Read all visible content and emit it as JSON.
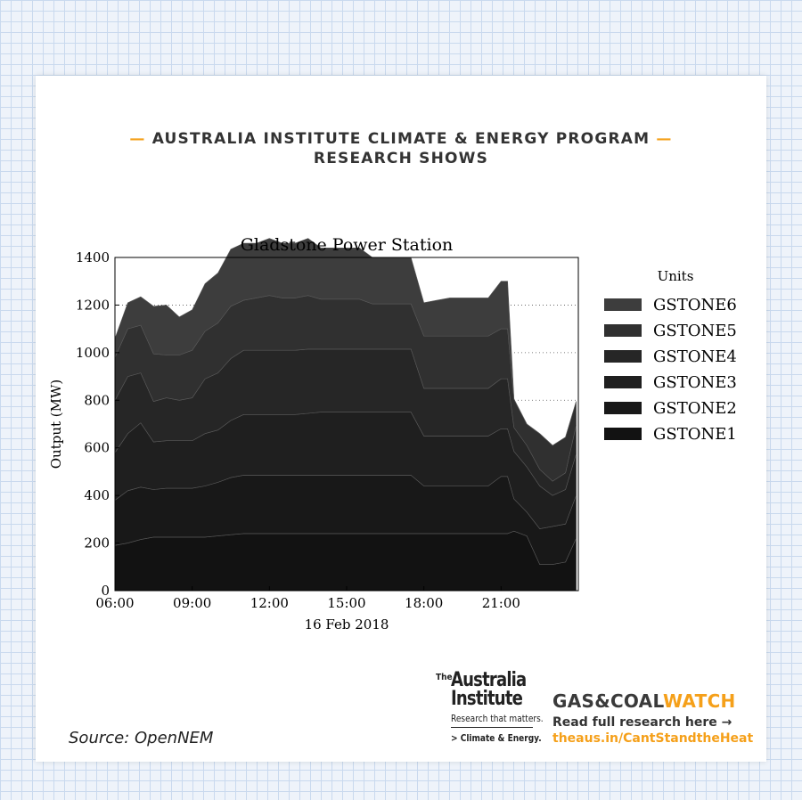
{
  "header": {
    "line1": "AUSTRALIA INSTITUTE CLIMATE & ENERGY PROGRAM",
    "line2": "RESEARCH SHOWS",
    "dash": "—"
  },
  "source": "Source: OpenNEM",
  "brand": {
    "ai_the": "The",
    "ai_name_line1": "Australia",
    "ai_name_line2": "Institute",
    "ai_tagline": "Research that matters.",
    "ai_program": "> Climate & Energy.",
    "gcw_part1": "GAS&COAL",
    "gcw_part2": "WATCH",
    "read_more": "Read full research here →",
    "url": "theaus.in/CantStandtheHeat"
  },
  "colors": {
    "accent": "#f5a01a",
    "units": [
      "#121212",
      "#181818",
      "#1f1f1f",
      "#262626",
      "#303030",
      "#3d3d3d"
    ]
  },
  "chart_data": {
    "type": "area",
    "stacked": true,
    "title": "Gladstone Power Station",
    "xlabel": "16 Feb 2018",
    "ylabel": "Output (MW)",
    "ylim": [
      0,
      1400
    ],
    "yticks": [
      0,
      200,
      400,
      600,
      800,
      1000,
      1200,
      1400
    ],
    "xlim": [
      "06:00",
      "24:00"
    ],
    "xticks": [
      "06:00",
      "09:00",
      "12:00",
      "15:00",
      "18:00",
      "21:00"
    ],
    "grid": "horizontal dotted",
    "legend_title": "Units",
    "legend_position": "right",
    "x": [
      "06:00",
      "06:30",
      "07:00",
      "07:30",
      "08:00",
      "08:30",
      "09:00",
      "09:30",
      "10:00",
      "10:30",
      "11:00",
      "11:30",
      "12:00",
      "12:30",
      "13:00",
      "13:30",
      "14:00",
      "14:30",
      "15:00",
      "15:30",
      "16:00",
      "16:30",
      "17:00",
      "17:30",
      "18:00",
      "18:30",
      "19:00",
      "19:30",
      "20:00",
      "20:30",
      "21:00",
      "21:15",
      "21:30",
      "22:00",
      "22:30",
      "23:00",
      "23:30",
      "23:55"
    ],
    "series": [
      {
        "name": "GSTONE1",
        "values": [
          190,
          200,
          215,
          225,
          225,
          225,
          225,
          225,
          230,
          235,
          240,
          240,
          240,
          240,
          240,
          240,
          240,
          240,
          240,
          240,
          240,
          240,
          240,
          240,
          240,
          240,
          240,
          240,
          240,
          240,
          240,
          240,
          250,
          230,
          110,
          110,
          120,
          220
        ]
      },
      {
        "name": "GSTONE2",
        "values": [
          190,
          220,
          220,
          200,
          205,
          205,
          205,
          215,
          225,
          240,
          245,
          245,
          245,
          245,
          245,
          245,
          245,
          245,
          245,
          245,
          245,
          245,
          245,
          245,
          200,
          200,
          200,
          200,
          200,
          200,
          240,
          240,
          135,
          100,
          150,
          160,
          160,
          180
        ]
      },
      {
        "name": "GSTONE3",
        "values": [
          200,
          240,
          270,
          200,
          200,
          200,
          200,
          220,
          220,
          240,
          255,
          255,
          255,
          255,
          255,
          260,
          265,
          265,
          265,
          265,
          265,
          265,
          265,
          265,
          210,
          210,
          210,
          210,
          210,
          210,
          200,
          200,
          200,
          190,
          180,
          130,
          145,
          175
        ]
      },
      {
        "name": "GSTONE4",
        "values": [
          220,
          240,
          210,
          170,
          180,
          170,
          180,
          230,
          240,
          260,
          270,
          270,
          270,
          270,
          270,
          270,
          265,
          265,
          265,
          265,
          265,
          265,
          265,
          265,
          200,
          200,
          200,
          200,
          200,
          200,
          210,
          210,
          100,
          90,
          70,
          60,
          70,
          120
        ]
      },
      {
        "name": "GSTONE5",
        "values": [
          180,
          200,
          200,
          200,
          180,
          190,
          200,
          200,
          210,
          220,
          210,
          220,
          230,
          220,
          220,
          225,
          210,
          210,
          210,
          210,
          190,
          190,
          190,
          190,
          220,
          220,
          220,
          220,
          220,
          220,
          210,
          210,
          120,
          90,
          150,
          150,
          150,
          100
        ]
      },
      {
        "name": "GSTONE6",
        "values": [
          80,
          110,
          120,
          200,
          210,
          160,
          170,
          200,
          210,
          240,
          240,
          230,
          240,
          230,
          230,
          240,
          215,
          215,
          215,
          215,
          195,
          195,
          195,
          195,
          140,
          150,
          160,
          160,
          160,
          160,
          200,
          200,
          0,
          0,
          0,
          0,
          0,
          0
        ]
      }
    ]
  }
}
